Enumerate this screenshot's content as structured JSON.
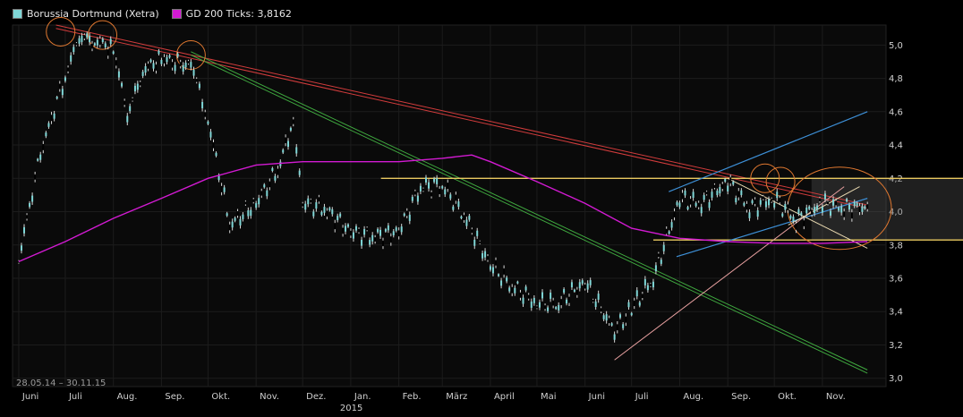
{
  "legend": {
    "series1": {
      "label": "Borussia Dortmund (Xetra)",
      "color": "#7fd6d6"
    },
    "series2": {
      "label": "GD 200 Ticks: 3,8162",
      "color": "#d21ad2"
    }
  },
  "range_label": "28.05.14 – 30.11.15",
  "chart_data": {
    "type": "line",
    "title": "",
    "xlabel": "",
    "ylabel": "",
    "ylim": [
      2.95,
      5.12
    ],
    "y_ticks": [
      "5,0",
      "4,8",
      "4,6",
      "4,4",
      "4,2",
      "4,0",
      "3,8",
      "3,6",
      "3,4",
      "3,2",
      "3,0"
    ],
    "x_ticks": [
      "Juni",
      "Juli",
      "Aug.",
      "Sep.",
      "Okt.",
      "Nov.",
      "Dez.",
      "Jan.",
      "Feb.",
      "März",
      "April",
      "Mai",
      "Juni",
      "Juli",
      "Aug.",
      "Sep.",
      "Okt.",
      "Nov."
    ],
    "x_year_label": "2015",
    "series": [
      {
        "name": "Borussia Dortmund (Xetra)",
        "color": "#7fd6d6",
        "x": [
          "2014-06-01",
          "2014-06-15",
          "2014-07-01",
          "2014-07-10",
          "2014-07-20",
          "2014-08-01",
          "2014-08-10",
          "2014-08-20",
          "2014-09-01",
          "2014-09-15",
          "2014-09-20",
          "2014-10-01",
          "2014-10-15",
          "2014-11-01",
          "2014-11-15",
          "2014-11-25",
          "2014-12-01",
          "2014-12-15",
          "2015-01-01",
          "2015-01-15",
          "2015-02-01",
          "2015-02-15",
          "2015-03-01",
          "2015-03-15",
          "2015-04-01",
          "2015-04-15",
          "2015-05-01",
          "2015-05-15",
          "2015-06-01",
          "2015-06-20",
          "2015-07-01",
          "2015-07-15",
          "2015-08-01",
          "2015-08-15",
          "2015-09-01",
          "2015-09-15",
          "2015-10-01",
          "2015-10-15",
          "2015-11-01",
          "2015-11-15",
          "2015-11-30"
        ],
        "values": [
          3.72,
          4.35,
          4.82,
          5.05,
          5.03,
          4.98,
          4.58,
          4.85,
          4.92,
          4.88,
          4.9,
          4.55,
          3.92,
          4.05,
          4.25,
          4.55,
          4.05,
          4.02,
          3.88,
          3.85,
          3.88,
          4.15,
          4.16,
          3.98,
          3.68,
          3.55,
          3.45,
          3.45,
          3.58,
          3.28,
          3.42,
          3.6,
          4.08,
          4.05,
          4.18,
          4.02,
          4.08,
          3.95,
          4.05,
          4.02,
          4.03
        ]
      },
      {
        "name": "GD 200 Ticks: 3,8162",
        "color": "#d21ad2",
        "x": [
          "2014-06-01",
          "2014-07-01",
          "2014-08-01",
          "2014-09-01",
          "2014-10-01",
          "2014-11-01",
          "2014-12-01",
          "2015-01-01",
          "2015-02-01",
          "2015-03-01",
          "2015-03-20",
          "2015-04-01",
          "2015-05-01",
          "2015-06-01",
          "2015-07-01",
          "2015-08-01",
          "2015-09-01",
          "2015-10-01",
          "2015-11-01",
          "2015-11-30"
        ],
        "values": [
          3.7,
          3.82,
          3.96,
          4.08,
          4.2,
          4.28,
          4.3,
          4.3,
          4.3,
          4.32,
          4.34,
          4.3,
          4.18,
          4.05,
          3.9,
          3.84,
          3.82,
          3.81,
          3.81,
          3.82
        ]
      }
    ],
    "annotations": {
      "red_lines": {
        "color": "#d23c3c",
        "from": [
          "2014-06-25",
          5.12
        ],
        "to": [
          "2015-11-30",
          4.04
        ]
      },
      "green_line": {
        "color": "#3fa83f",
        "from": [
          "2014-09-20",
          4.96
        ],
        "to": [
          "2015-11-30",
          3.05
        ]
      },
      "yellow_lines": {
        "color": "#e8c860",
        "levels": [
          4.2,
          3.83
        ]
      },
      "blue_channel": {
        "color": "#3d8fd6",
        "upper_from": [
          "2015-07-25",
          4.12
        ],
        "upper_to": [
          "2015-11-30",
          4.6
        ],
        "lower_from": [
          "2015-07-30",
          3.73
        ],
        "lower_to": [
          "2015-11-30",
          4.08
        ]
      },
      "pink_line": {
        "color": "#e8a0a0",
        "from": [
          "2015-06-20",
          3.11
        ],
        "to": [
          "2015-11-15",
          4.15
        ]
      },
      "circles": [
        [
          "2014-06-28",
          5.08
        ],
        [
          "2014-07-25",
          5.06
        ],
        [
          "2014-09-20",
          4.94
        ],
        [
          "2015-09-25",
          4.2
        ],
        [
          "2015-10-05",
          4.18
        ],
        [
          "2015-11-12",
          4.02
        ]
      ]
    }
  }
}
